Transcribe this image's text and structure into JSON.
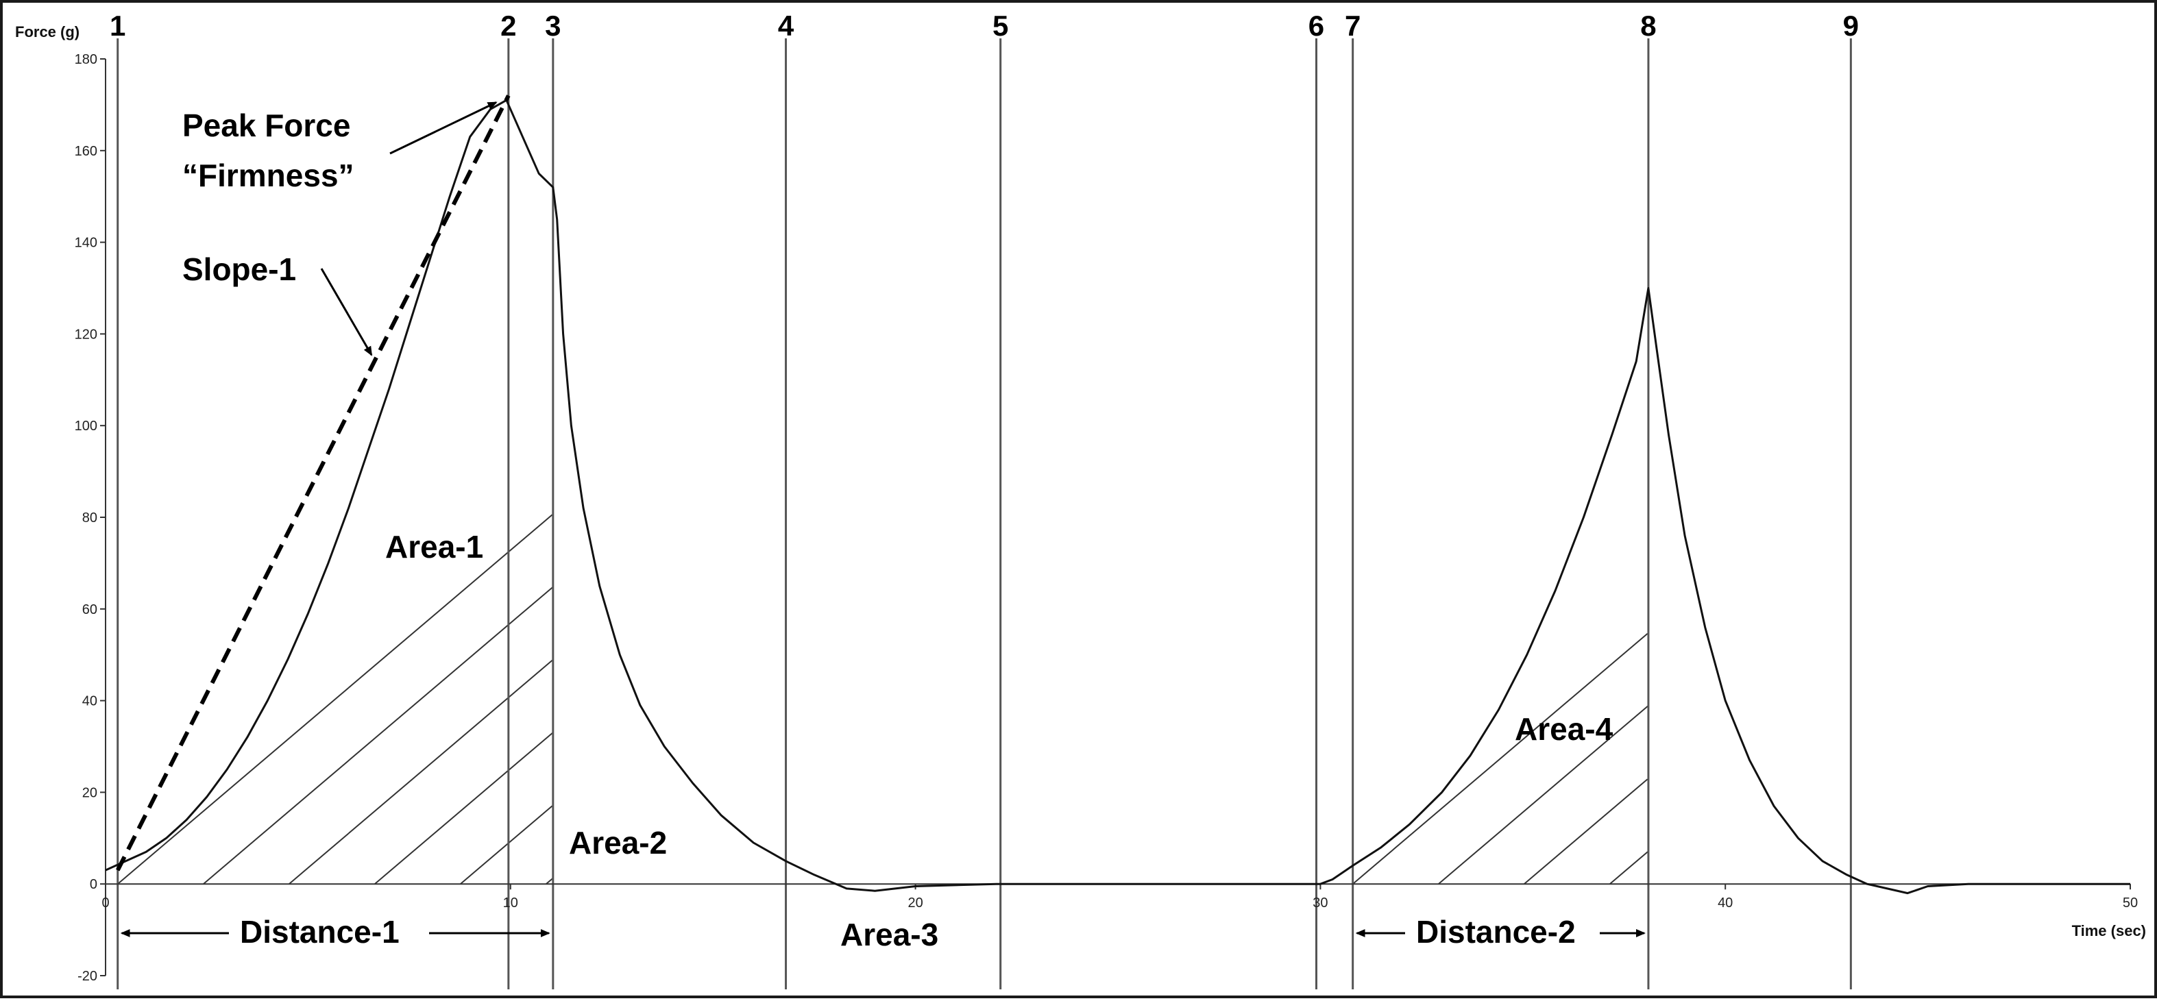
{
  "chart_data": {
    "type": "line",
    "xlabel": "Time (sec)",
    "ylabel": "Force (g)",
    "xlim": [
      0,
      50
    ],
    "ylim": [
      -20,
      180
    ],
    "x_ticks": [
      0,
      10,
      20,
      30,
      40,
      50
    ],
    "y_ticks": [
      -20,
      0,
      20,
      40,
      60,
      80,
      100,
      120,
      140,
      160,
      180
    ],
    "grid": false,
    "series": [
      {
        "x": [
          0,
          0.5,
          1,
          1.5,
          2,
          2.5,
          3,
          3.5,
          4,
          4.5,
          5,
          5.5,
          6,
          6.5,
          7,
          7.5,
          8,
          8.5,
          9,
          9.5,
          9.9,
          10.3,
          10.7,
          11.05,
          11.15,
          11.3,
          11.5,
          11.8,
          12.2,
          12.7,
          13.2,
          13.8,
          14.5,
          15.2,
          16,
          16.8,
          17.5,
          18.3,
          19,
          20,
          22,
          25,
          28,
          30,
          30.3,
          30.8,
          31.5,
          32.2,
          33,
          33.7,
          34.4,
          35.1,
          35.8,
          36.5,
          37.2,
          37.8,
          38.1,
          38.3,
          38.6,
          39,
          39.5,
          40,
          40.6,
          41.2,
          41.8,
          42.4,
          43,
          43.5,
          44,
          44.5,
          45,
          46,
          48,
          50
        ],
        "y": [
          3,
          5,
          7,
          10,
          14,
          19,
          25,
          32,
          40,
          49,
          59,
          70,
          82,
          95,
          108,
          122,
          136,
          150,
          163,
          169,
          171,
          163,
          155,
          152,
          145,
          120,
          100,
          82,
          65,
          50,
          39,
          30,
          22,
          15,
          9,
          5,
          2,
          -1,
          -1.5,
          -0.5,
          0,
          0,
          0,
          0,
          1,
          4,
          8,
          13,
          20,
          28,
          38,
          50,
          64,
          80,
          98,
          114,
          130,
          117,
          98,
          76,
          56,
          40,
          27,
          17,
          10,
          5,
          2,
          0,
          -1,
          -2,
          -0.5,
          0,
          0,
          0
        ]
      }
    ],
    "markers": [
      {
        "label": "1",
        "x": 0.3
      },
      {
        "label": "2",
        "x": 9.95
      },
      {
        "label": "3",
        "x": 11.05
      },
      {
        "label": "4",
        "x": 16.8
      },
      {
        "label": "5",
        "x": 22.1
      },
      {
        "label": "6",
        "x": 29.9
      },
      {
        "label": "7",
        "x": 30.8
      },
      {
        "label": "8",
        "x": 38.1
      },
      {
        "label": "9",
        "x": 43.1
      }
    ],
    "slope_line": {
      "x0": 0.3,
      "y0": 3,
      "x1": 9.95,
      "y1": 172
    },
    "hatched_regions": [
      {
        "name": "Area-1",
        "from": 0.3,
        "to": 11.05
      },
      {
        "name": "Area-4",
        "from": 30.8,
        "to": 38.1
      }
    ],
    "annotations": {
      "peak_force": [
        "Peak Force",
        "“Firmness”"
      ],
      "slope": "Slope-1",
      "area1": "Area-1",
      "area2": "Area-2",
      "area3": "Area-3",
      "area4": "Area-4",
      "distance1": "Distance-1",
      "distance2": "Distance-2"
    }
  }
}
